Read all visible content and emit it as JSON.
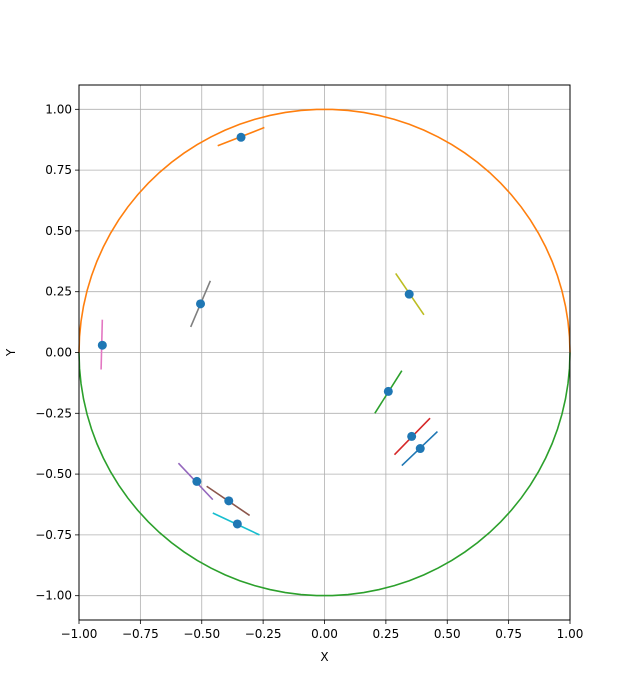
{
  "chart_data": {
    "type": "scatter",
    "title": "",
    "xlabel": "X",
    "ylabel": "Y",
    "xlim": [
      -1.0,
      1.0
    ],
    "ylim": [
      -1.1,
      1.1
    ],
    "grid": true,
    "x_ticks": [
      -1.0,
      -0.75,
      -0.5,
      -0.25,
      0.0,
      0.25,
      0.5,
      0.75,
      1.0
    ],
    "x_tick_labels": [
      "−1.00",
      "−0.75",
      "−0.50",
      "−0.25",
      "0.00",
      "0.25",
      "0.50",
      "0.75",
      "1.00"
    ],
    "y_ticks": [
      1.0,
      0.75,
      0.5,
      0.25,
      0.0,
      -0.25,
      -0.5,
      -0.75,
      -1.0
    ],
    "y_tick_labels": [
      "1.00",
      "0.75",
      "0.50",
      "0.25",
      "0.00",
      "−0.25",
      "−0.50",
      "−0.75",
      "−1.00"
    ],
    "upper_semicircle": {
      "center": [
        0,
        0
      ],
      "radius": 1.0,
      "color": "#ff7f0e"
    },
    "lower_semicircle": {
      "center": [
        0,
        0
      ],
      "radius": 1.0,
      "color": "#2ca02c"
    },
    "points": {
      "color": "#1f77b4",
      "values": [
        [
          -0.34,
          0.885
        ],
        [
          -0.505,
          0.2
        ],
        [
          -0.905,
          0.03
        ],
        [
          0.345,
          0.24
        ],
        [
          0.26,
          -0.16
        ],
        [
          0.355,
          -0.345
        ],
        [
          0.39,
          -0.395
        ],
        [
          -0.52,
          -0.53
        ],
        [
          -0.39,
          -0.61
        ],
        [
          -0.355,
          -0.705
        ]
      ]
    },
    "segments": [
      {
        "from": [
          -0.435,
          0.85
        ],
        "to": [
          -0.245,
          0.925
        ],
        "color": "#ff7f0e"
      },
      {
        "from": [
          -0.545,
          0.105
        ],
        "to": [
          -0.465,
          0.295
        ],
        "color": "#7f7f7f"
      },
      {
        "from": [
          -0.91,
          -0.07
        ],
        "to": [
          -0.905,
          0.135
        ],
        "color": "#e377c2"
      },
      {
        "from": [
          0.29,
          0.325
        ],
        "to": [
          0.405,
          0.155
        ],
        "color": "#bcbd22"
      },
      {
        "from": [
          0.205,
          -0.25
        ],
        "to": [
          0.315,
          -0.075
        ],
        "color": "#2ca02c"
      },
      {
        "from": [
          0.285,
          -0.42
        ],
        "to": [
          0.43,
          -0.27
        ],
        "color": "#d62728"
      },
      {
        "from": [
          0.315,
          -0.465
        ],
        "to": [
          0.46,
          -0.325
        ],
        "color": "#1f77b4"
      },
      {
        "from": [
          -0.595,
          -0.455
        ],
        "to": [
          -0.455,
          -0.605
        ],
        "color": "#9467bd"
      },
      {
        "from": [
          -0.48,
          -0.55
        ],
        "to": [
          -0.305,
          -0.67
        ],
        "color": "#8c564b"
      },
      {
        "from": [
          -0.455,
          -0.66
        ],
        "to": [
          -0.265,
          -0.75
        ],
        "color": "#17becf"
      }
    ]
  }
}
